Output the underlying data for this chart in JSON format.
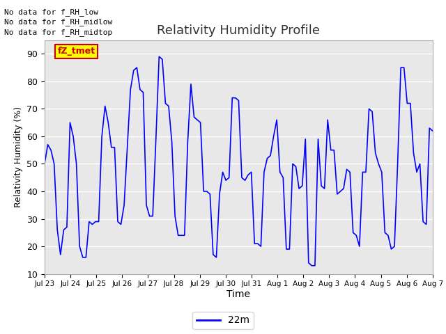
{
  "title": "Relativity Humidity Profile",
  "xlabel": "Time",
  "ylabel": "Relativity Humidity (%)",
  "ylim": [
    10,
    95
  ],
  "yticks": [
    10,
    20,
    30,
    40,
    50,
    60,
    70,
    80,
    90
  ],
  "line_color": "#0000FF",
  "line_width": 1.2,
  "fig_bg_color": "#FFFFFF",
  "plot_bg_color": "#E8E8E8",
  "grid_color": "#FFFFFF",
  "legend_label": "22m",
  "annotations": [
    "No data for f_RH_low",
    "No data for f_RH_midlow",
    "No data for f_RH_midtop"
  ],
  "annotation_color": "#000000",
  "annotation_fontsize": 8,
  "legend_box_color": "#FFFF00",
  "legend_box_edge": "#CC0000",
  "legend_text_color": "#CC0000",
  "fZ_label": "fZ_tmet",
  "x_tick_labels": [
    "Jul 23",
    "Jul 24",
    "Jul 25",
    "Jul 26",
    "Jul 27",
    "Jul 28",
    "Jul 29",
    "Jul 30",
    "Jul 31",
    "Aug 1",
    "Aug 2",
    "Aug 3",
    "Aug 4",
    "Aug 5",
    "Aug 6",
    "Aug 7"
  ],
  "humidity_data": [
    50,
    57,
    55,
    50,
    26,
    17,
    26,
    27,
    65,
    60,
    50,
    20,
    16,
    16,
    29,
    28,
    29,
    29,
    60,
    71,
    65,
    56,
    56,
    29,
    28,
    35,
    56,
    77,
    84,
    85,
    77,
    76,
    35,
    31,
    31,
    59,
    89,
    88,
    72,
    71,
    58,
    31,
    24,
    24,
    24,
    58,
    79,
    67,
    66,
    65,
    40,
    40,
    39,
    17,
    16,
    39,
    47,
    44,
    45,
    74,
    74,
    73,
    45,
    44,
    46,
    47,
    21,
    21,
    20,
    47,
    52,
    53,
    60,
    66,
    47,
    45,
    19,
    19,
    50,
    49,
    41,
    42,
    59,
    14,
    13,
    13,
    59,
    42,
    41,
    66,
    55,
    55,
    39,
    40,
    41,
    48,
    47,
    25,
    24,
    20,
    47,
    47,
    70,
    69,
    54,
    50,
    47,
    25,
    24,
    19,
    20,
    50,
    85,
    85,
    72,
    72,
    54,
    47,
    50,
    29,
    28,
    63,
    62
  ]
}
